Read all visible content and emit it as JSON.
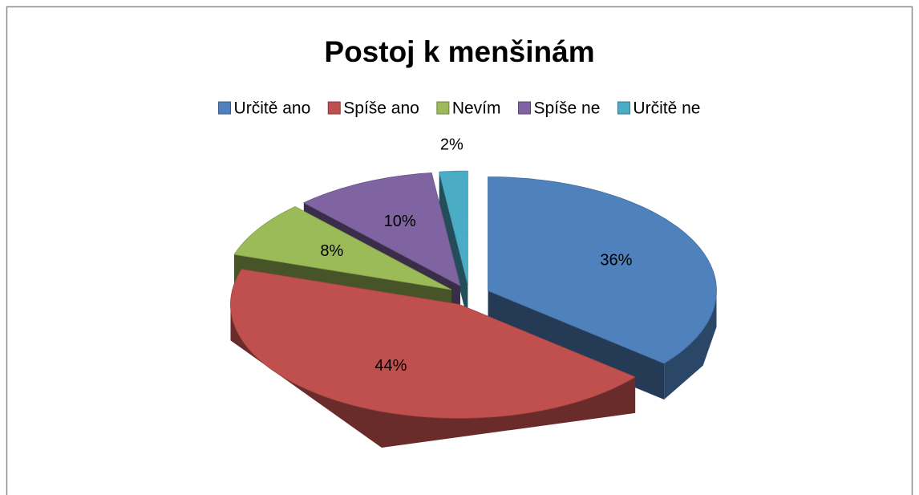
{
  "chart_data": {
    "type": "pie",
    "title": "Postoj k menšinám",
    "categories": [
      "Určitě ano",
      "Spíše ano",
      "Nevím",
      "Spíše ne",
      "Určitě ne"
    ],
    "values": [
      36,
      44,
      8,
      10,
      2
    ],
    "value_labels": [
      "36%",
      "44%",
      "8%",
      "10%",
      "2%"
    ],
    "colors": [
      "#4f81bd",
      "#c0504d",
      "#9bbb59",
      "#8064a2",
      "#4bacc6"
    ],
    "legend": "top",
    "three_d": true,
    "exploded": true
  }
}
